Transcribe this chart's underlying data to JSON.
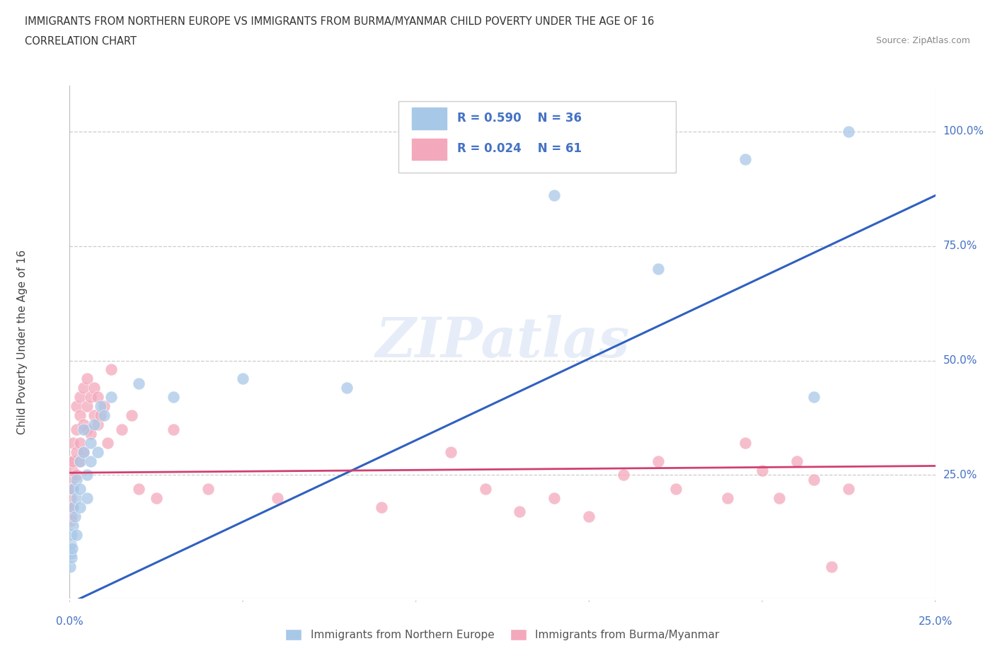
{
  "title_line1": "IMMIGRANTS FROM NORTHERN EUROPE VS IMMIGRANTS FROM BURMA/MYANMAR CHILD POVERTY UNDER THE AGE OF 16",
  "title_line2": "CORRELATION CHART",
  "source": "Source: ZipAtlas.com",
  "ylabel": "Child Poverty Under the Age of 16",
  "watermark": "ZIPatlas",
  "blue_label": "Immigrants from Northern Europe",
  "pink_label": "Immigrants from Burma/Myanmar",
  "blue_R": "R = 0.590",
  "blue_N": "N = 36",
  "pink_R": "R = 0.024",
  "pink_N": "N = 61",
  "blue_color": "#a8c8e8",
  "pink_color": "#f4a8bc",
  "blue_line_color": "#3060c0",
  "pink_line_color": "#d04070",
  "background_color": "#ffffff",
  "grid_color": "#cccccc",
  "ytick_color": "#4472c4",
  "blue_scatter_x": [
    0.0002,
    0.0003,
    0.0004,
    0.0005,
    0.0006,
    0.0008,
    0.001,
    0.001,
    0.001,
    0.0015,
    0.002,
    0.002,
    0.002,
    0.003,
    0.003,
    0.003,
    0.004,
    0.004,
    0.005,
    0.005,
    0.006,
    0.006,
    0.007,
    0.008,
    0.009,
    0.01,
    0.012,
    0.02,
    0.03,
    0.05,
    0.08,
    0.14,
    0.17,
    0.195,
    0.215,
    0.225
  ],
  "blue_scatter_y": [
    0.05,
    0.08,
    0.1,
    0.12,
    0.07,
    0.09,
    0.14,
    0.18,
    0.22,
    0.16,
    0.2,
    0.24,
    0.12,
    0.28,
    0.18,
    0.22,
    0.3,
    0.35,
    0.2,
    0.25,
    0.28,
    0.32,
    0.36,
    0.3,
    0.4,
    0.38,
    0.42,
    0.45,
    0.42,
    0.46,
    0.44,
    0.86,
    0.7,
    0.94,
    0.42,
    1.0
  ],
  "pink_scatter_x": [
    0.0001,
    0.0002,
    0.0003,
    0.0004,
    0.0005,
    0.0005,
    0.0006,
    0.0007,
    0.0008,
    0.001,
    0.001,
    0.001,
    0.001,
    0.002,
    0.002,
    0.002,
    0.002,
    0.003,
    0.003,
    0.003,
    0.003,
    0.004,
    0.004,
    0.004,
    0.005,
    0.005,
    0.005,
    0.006,
    0.006,
    0.007,
    0.007,
    0.008,
    0.008,
    0.009,
    0.01,
    0.011,
    0.012,
    0.015,
    0.018,
    0.02,
    0.025,
    0.03,
    0.04,
    0.06,
    0.09,
    0.11,
    0.12,
    0.13,
    0.14,
    0.15,
    0.16,
    0.17,
    0.175,
    0.19,
    0.195,
    0.2,
    0.205,
    0.21,
    0.215,
    0.22,
    0.225
  ],
  "pink_scatter_y": [
    0.18,
    0.22,
    0.2,
    0.15,
    0.24,
    0.16,
    0.28,
    0.26,
    0.22,
    0.28,
    0.32,
    0.22,
    0.18,
    0.35,
    0.3,
    0.25,
    0.4,
    0.38,
    0.32,
    0.28,
    0.42,
    0.36,
    0.44,
    0.3,
    0.4,
    0.46,
    0.35,
    0.42,
    0.34,
    0.44,
    0.38,
    0.42,
    0.36,
    0.38,
    0.4,
    0.32,
    0.48,
    0.35,
    0.38,
    0.22,
    0.2,
    0.35,
    0.22,
    0.2,
    0.18,
    0.3,
    0.22,
    0.17,
    0.2,
    0.16,
    0.25,
    0.28,
    0.22,
    0.2,
    0.32,
    0.26,
    0.2,
    0.28,
    0.24,
    0.05,
    0.22
  ],
  "xlim": [
    0.0,
    0.25
  ],
  "ylim": [
    -0.02,
    1.1
  ],
  "yticks": [
    0.25,
    0.5,
    0.75,
    1.0
  ],
  "ytick_labels": [
    "25.0%",
    "50.0%",
    "75.0%",
    "100.0%"
  ],
  "xtick_labels": [
    "0.0%",
    "25.0%"
  ],
  "blue_line_x": [
    0.0,
    0.25
  ],
  "blue_line_y": [
    -0.03,
    0.86
  ],
  "pink_line_x": [
    0.0,
    0.25
  ],
  "pink_line_y": [
    0.255,
    0.27
  ]
}
